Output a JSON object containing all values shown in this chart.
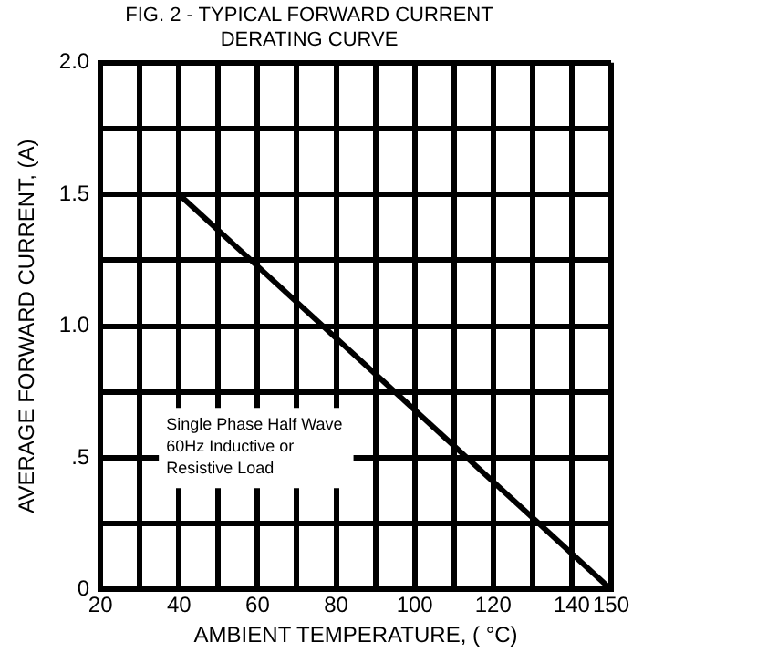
{
  "chart_data": {
    "type": "line",
    "title": "FIG. 2 - TYPICAL FORWARD CURRENT\nDERATING CURVE",
    "xlabel": "AMBIENT TEMPERATURE, ( °C)",
    "ylabel": "AVERAGE FORWARD CURRENT, (A)",
    "x": [
      40,
      150
    ],
    "series": [
      {
        "color": "#000000",
        "values": [
          1.5,
          0
        ]
      }
    ],
    "xlim": [
      20,
      150
    ],
    "xticks": [
      20,
      {
        "value": 30,
        "label": null
      },
      40,
      {
        "value": 50,
        "label": null
      },
      60,
      {
        "value": 70,
        "label": null
      },
      80,
      {
        "value": 90,
        "label": null
      },
      100,
      {
        "value": 110,
        "label": null
      },
      120,
      {
        "value": 130,
        "label": null
      },
      140,
      150
    ],
    "ylim": [
      0,
      2
    ],
    "yticks": [
      0,
      {
        "value": 0.25,
        "label": null
      },
      {
        "value": 0.5,
        "label": ".5"
      },
      {
        "value": 0.75,
        "label": null
      },
      {
        "value": 1,
        "label": "1.0"
      },
      {
        "value": 1.25,
        "label": null
      },
      {
        "value": 1.5,
        "label": "1.5"
      },
      {
        "value": 1.75,
        "label": null
      },
      {
        "value": 2,
        "label": "2.0"
      }
    ],
    "annotations": [
      "Single Phase Half Wave\n60Hz Inductive or\nResistive Load"
    ],
    "grid": true,
    "marker": "none",
    "line_style": "solid",
    "legend": false
  }
}
